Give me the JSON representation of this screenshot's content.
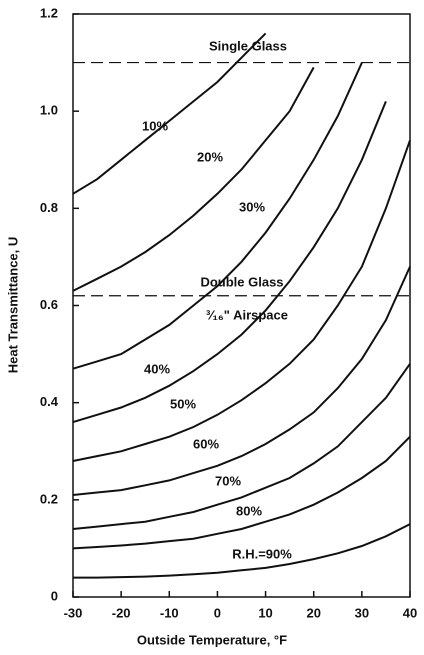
{
  "chart_data": {
    "type": "line",
    "xlabel": "Outside Temperature, °F",
    "ylabel": "Heat Transmittance, U",
    "x": [
      -30,
      -25,
      -20,
      -15,
      -10,
      -5,
      0,
      5,
      10,
      15,
      20,
      25,
      30,
      35,
      40
    ],
    "xlim": [
      -30,
      40
    ],
    "xticks": [
      -30,
      -20,
      -10,
      0,
      10,
      20,
      30,
      40
    ],
    "ylim": [
      0,
      1.2
    ],
    "yticks": [
      0,
      0.2,
      0.4,
      0.6,
      0.8,
      {
        "value": 1.0,
        "label": "1.0"
      },
      1.2
    ],
    "color": "#111111",
    "series": [
      {
        "name": "10%",
        "values": [
          0.83,
          0.86,
          0.9,
          0.94,
          0.98,
          1.02,
          1.06,
          1.11,
          1.16,
          null,
          null,
          null,
          null,
          null,
          null
        ]
      },
      {
        "name": "20%",
        "values": [
          0.63,
          0.655,
          0.68,
          0.71,
          0.745,
          0.785,
          0.83,
          0.88,
          0.94,
          1.0,
          1.09,
          null,
          null,
          null,
          null
        ]
      },
      {
        "name": "30%",
        "values": [
          0.47,
          0.485,
          0.5,
          0.53,
          0.56,
          0.6,
          0.64,
          0.69,
          0.75,
          0.82,
          0.9,
          0.99,
          1.1,
          null,
          null
        ]
      },
      {
        "name": "40%",
        "values": [
          0.36,
          0.375,
          0.39,
          0.41,
          0.435,
          0.465,
          0.5,
          0.54,
          0.59,
          0.65,
          0.72,
          0.8,
          0.9,
          1.02,
          null
        ]
      },
      {
        "name": "50%",
        "values": [
          0.28,
          0.29,
          0.3,
          0.315,
          0.33,
          0.35,
          0.375,
          0.405,
          0.44,
          0.48,
          0.53,
          0.6,
          0.68,
          0.8,
          0.94
        ]
      },
      {
        "name": "60%",
        "values": [
          0.21,
          0.215,
          0.22,
          0.23,
          0.24,
          0.255,
          0.27,
          0.29,
          0.315,
          0.345,
          0.38,
          0.43,
          0.49,
          0.57,
          0.68
        ]
      },
      {
        "name": "70%",
        "values": [
          0.14,
          0.145,
          0.15,
          0.155,
          0.165,
          0.175,
          0.19,
          0.205,
          0.225,
          0.245,
          0.275,
          0.31,
          0.36,
          0.41,
          0.48
        ]
      },
      {
        "name": "80%",
        "values": [
          0.1,
          0.103,
          0.106,
          0.11,
          0.115,
          0.12,
          0.13,
          0.14,
          0.155,
          0.17,
          0.19,
          0.215,
          0.245,
          0.28,
          0.33
        ]
      },
      {
        "name": "R.H.=90%",
        "values": [
          0.04,
          0.04,
          0.041,
          0.042,
          0.044,
          0.047,
          0.05,
          0.055,
          0.06,
          0.068,
          0.078,
          0.09,
          0.105,
          0.125,
          0.15
        ]
      }
    ],
    "reference_lines": [
      {
        "value": 1.1,
        "label": "Single Glass"
      },
      {
        "value": 0.62,
        "label": "Double Glass"
      }
    ],
    "annotations": [
      "³⁄₁₆\" Airspace"
    ]
  }
}
